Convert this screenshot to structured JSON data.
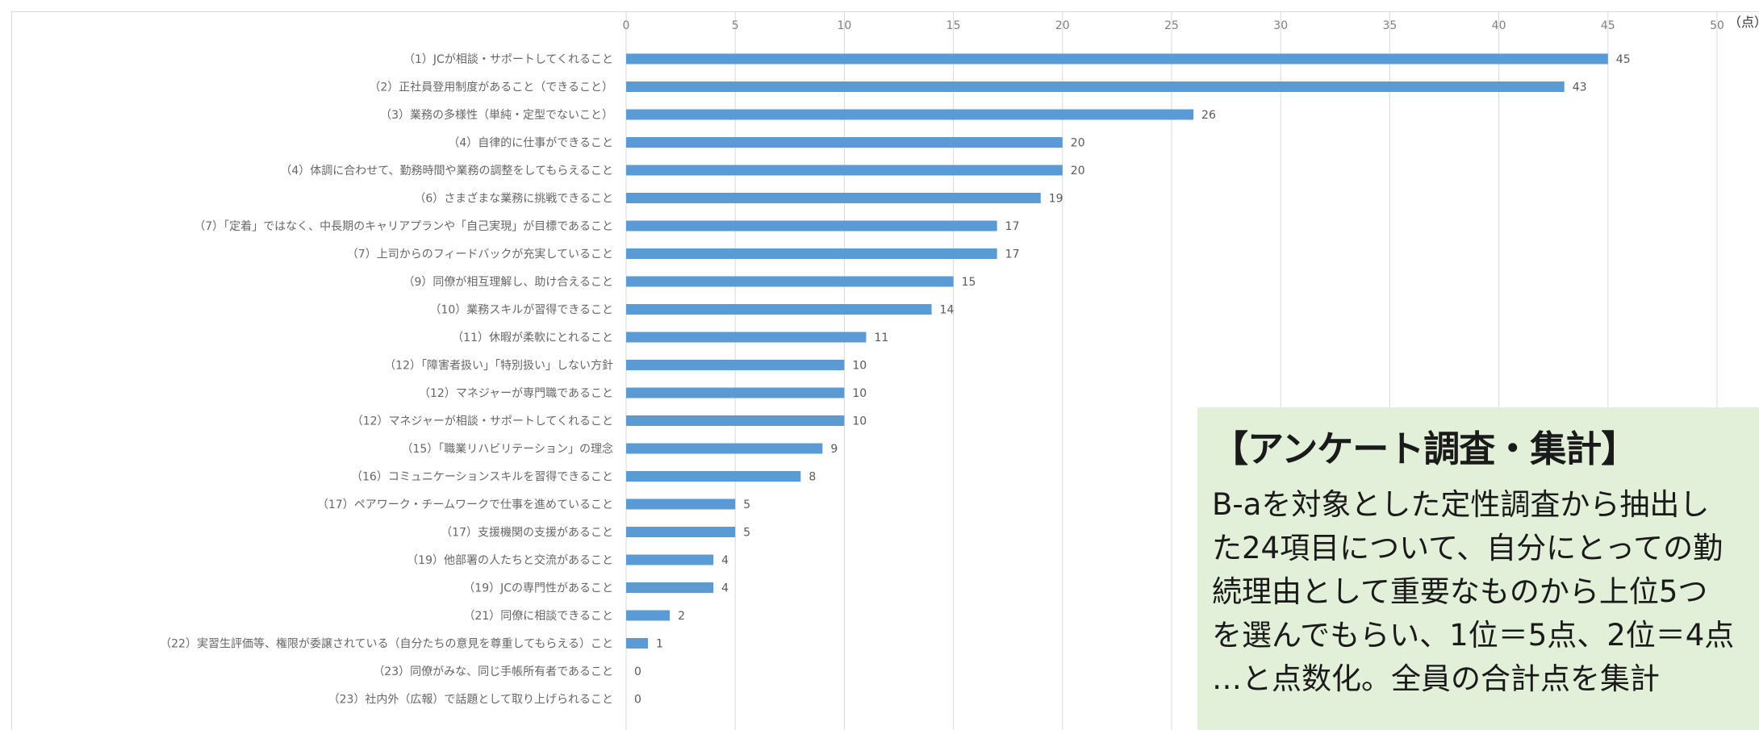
{
  "chart_data": {
    "type": "bar",
    "orientation": "horizontal",
    "unit": "（点）",
    "xlim": [
      0,
      50
    ],
    "xticks": [
      0,
      5,
      10,
      15,
      20,
      25,
      30,
      35,
      40,
      45,
      50
    ],
    "grid": true,
    "bar_color": "#5b9bd5",
    "categories": [
      "（1）JCが相談・サポートしてくれること",
      "（2）正社員登用制度があること（できること）",
      "（3）業務の多様性（単純・定型でないこと）",
      "（4）自律的に仕事ができること",
      "（4）体調に合わせて、勤務時間や業務の調整をしてもらえること",
      "（6）さまざまな業務に挑戦できること",
      "（7）「定着」ではなく、中長期のキャリアプランや「自己実現」が目標であること",
      "（7）上司からのフィードバックが充実していること",
      "（9）同僚が相互理解し、助け合えること",
      "（10）業務スキルが習得できること",
      "（11）休暇が柔軟にとれること",
      "（12）「障害者扱い」「特別扱い」しない方針",
      "（12）マネジャーが専門職であること",
      "（12）マネジャーが相談・サポートしてくれること",
      "（15）「職業リハビリテーション」の理念",
      "（16）コミュニケーションスキルを習得できること",
      "（17）ペアワーク・チームワークで仕事を進めていること",
      "（17）支援機関の支援があること",
      "（19）他部署の人たちと交流があること",
      "（19）JCの専門性があること",
      "（21）同僚に相談できること",
      "（22）実習生評価等、権限が委譲されている（自分たちの意見を尊重してもらえる）こと",
      "（23）同僚がみな、同じ手帳所有者であること",
      "（23）社内外（広報）で話題として取り上げられること"
    ],
    "values": [
      45,
      43,
      26,
      20,
      20,
      19,
      17,
      17,
      15,
      14,
      11,
      10,
      10,
      10,
      9,
      8,
      5,
      5,
      4,
      4,
      2,
      1,
      0,
      0
    ]
  },
  "note": {
    "title": "【アンケート調査・集計】",
    "lines": [
      "B-aを対象とした定性調査から抽出し",
      "た24項目について、自分にとっての勤",
      "続理由として重要なものから上位5つ",
      "を選んでもらい、1位＝5点、2位＝4点",
      "…と点数化。全員の合計点を集計"
    ]
  }
}
